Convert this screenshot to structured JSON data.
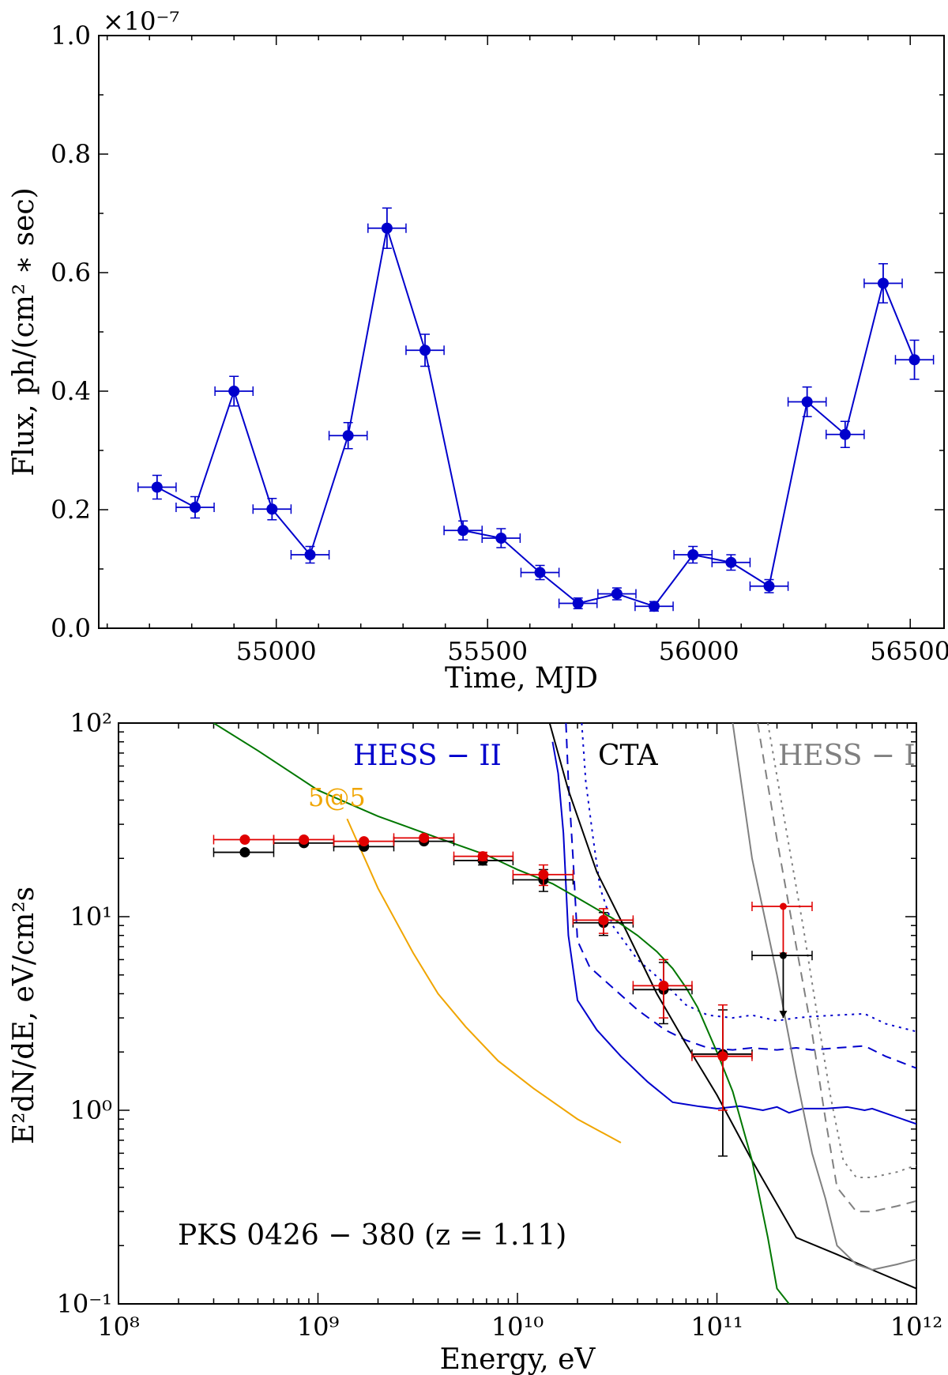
{
  "chart_data": [
    {
      "type": "scatter",
      "title": "",
      "xlabel": "Time, MJD",
      "ylabel": "Flux, ph/(cm² ∗ sec)",
      "y_multiplier": "×10⁻⁷",
      "xlim": [
        54580,
        56580
      ],
      "ylim": [
        0.0,
        1.0
      ],
      "x_ticks": [
        55000,
        55500,
        56000,
        56500
      ],
      "x_tick_labels": [
        "55000",
        "55500",
        "56000",
        "56500"
      ],
      "y_ticks": [
        0.0,
        0.2,
        0.4,
        0.6,
        0.8,
        1.0
      ],
      "y_tick_labels": [
        "0.0",
        "0.2",
        "0.4",
        "0.6",
        "0.8",
        "1.0"
      ],
      "grid": false,
      "color": "#0000cc",
      "x_halfwidth": 45,
      "series": [
        {
          "x": [
            54718,
            54808,
            54900,
            54990,
            55080,
            55170,
            55262,
            55352,
            55442,
            55532,
            55624,
            55714,
            55806,
            55894,
            55986,
            56076,
            56166,
            56256,
            56346,
            56436,
            56510
          ],
          "y": [
            0.238,
            0.204,
            0.4,
            0.201,
            0.124,
            0.325,
            0.675,
            0.469,
            0.165,
            0.152,
            0.094,
            0.042,
            0.058,
            0.037,
            0.124,
            0.111,
            0.071,
            0.382,
            0.327,
            0.582,
            0.453
          ],
          "yerr": [
            0.02,
            0.018,
            0.025,
            0.018,
            0.014,
            0.022,
            0.034,
            0.027,
            0.016,
            0.016,
            0.012,
            0.009,
            0.01,
            0.008,
            0.014,
            0.013,
            0.011,
            0.025,
            0.022,
            0.033,
            0.033
          ]
        }
      ]
    },
    {
      "type": "line",
      "title": "",
      "xlabel": "Energy, eV",
      "ylabel": "E²dN/dE, eV/cm²s",
      "x_scale": "log",
      "y_scale": "log",
      "xlim": [
        100000000.0,
        1000000000000.0
      ],
      "ylim": [
        0.1,
        100
      ],
      "x_tick_labels": [
        "10⁸",
        "10⁹",
        "10¹⁰",
        "10¹¹",
        "10¹²"
      ],
      "y_tick_labels": [
        "10⁻¹",
        "10⁰",
        "10¹",
        "10²"
      ],
      "grid": false,
      "annotation": "PKS 0426 − 380 (z = 1.11)",
      "curve_labels": [
        {
          "text": "HESS − II",
          "color": "#0000cc"
        },
        {
          "text": "CTA",
          "color": "#000000"
        },
        {
          "text": "HESS − I",
          "color": "#808080"
        },
        {
          "text": "5@5",
          "color": "#f0a500"
        }
      ],
      "series": [
        {
          "name": "HESS − II",
          "style": "solid",
          "color": "#0000cc",
          "x": [
            15000000000.0,
            16000000000.0,
            17000000000.0,
            18000000000.0,
            20000000000.0,
            25000000000.0,
            33000000000.0,
            45000000000.0,
            60000000000.0,
            80000000000.0,
            100000000000.0,
            130000000000.0,
            170000000000.0,
            200000000000.0,
            230000000000.0,
            270000000000.0,
            350000000000.0,
            450000000000.0,
            550000000000.0,
            600000000000.0,
            1000000000000.0
          ],
          "y": [
            80,
            55,
            27,
            8,
            3.7,
            2.6,
            1.9,
            1.4,
            1.1,
            1.05,
            1.02,
            1.05,
            1.0,
            1.04,
            0.97,
            1.02,
            1.02,
            1.04,
            1.0,
            1.02,
            0.85
          ]
        },
        {
          "name": "HESS − II",
          "style": "dashed",
          "color": "#0000cc",
          "x": [
            17500000000.0,
            18000000000.0,
            19000000000.0,
            20000000000.0,
            23000000000.0,
            30000000000.0,
            40000000000.0,
            55000000000.0,
            70000000000.0,
            90000000000.0,
            120000000000.0,
            150000000000.0,
            200000000000.0,
            250000000000.0,
            300000000000.0,
            400000000000.0,
            550000000000.0,
            700000000000.0,
            1000000000000.0
          ],
          "y": [
            100,
            50,
            20,
            7.5,
            5.5,
            4.3,
            3.3,
            2.6,
            2.3,
            2.1,
            2.05,
            2.1,
            2.05,
            2.1,
            2.05,
            2.1,
            2.15,
            1.9,
            1.65
          ]
        },
        {
          "name": "HESS − II",
          "style": "dotted",
          "color": "#0000cc",
          "x": [
            21000000000.0,
            22000000000.0,
            24000000000.0,
            26000000000.0,
            30000000000.0,
            40000000000.0,
            55000000000.0,
            70000000000.0,
            90000000000.0,
            120000000000.0,
            150000000000.0,
            200000000000.0,
            250000000000.0,
            300000000000.0,
            400000000000.0,
            550000000000.0,
            700000000000.0,
            1000000000000.0
          ],
          "y": [
            100,
            50,
            25,
            14,
            9,
            6,
            4.5,
            3.5,
            3.1,
            3.0,
            3.1,
            2.9,
            3.0,
            3.05,
            3.1,
            3.15,
            2.8,
            2.55
          ]
        },
        {
          "name": "CTA",
          "style": "solid",
          "color": "#000000",
          "x": [
            14500000000.0,
            18000000000.0,
            25000000000.0,
            35000000000.0,
            50000000000.0,
            70000000000.0,
            100000000000.0,
            150000000000.0,
            250000000000.0,
            400000000000.0,
            600000000000.0,
            1000000000000.0
          ],
          "y": [
            100,
            45,
            17,
            8.5,
            4.0,
            2.2,
            1.2,
            0.55,
            0.22,
            0.18,
            0.15,
            0.12
          ]
        },
        {
          "name": "HESS − I",
          "style": "solid",
          "color": "#808080",
          "x": [
            120000000000.0,
            150000000000.0,
            200000000000.0,
            250000000000.0,
            300000000000.0,
            350000000000.0,
            400000000000.0,
            500000000000.0,
            600000000000.0,
            800000000000.0,
            1000000000000.0
          ],
          "y": [
            100,
            20,
            5,
            1.5,
            0.6,
            0.35,
            0.2,
            0.16,
            0.15,
            0.16,
            0.17
          ]
        },
        {
          "name": "HESS − I",
          "style": "dashed",
          "color": "#808080",
          "x": [
            160000000000.0,
            200000000000.0,
            250000000000.0,
            300000000000.0,
            350000000000.0,
            400000000000.0,
            500000000000.0,
            600000000000.0,
            800000000000.0,
            1000000000000.0
          ],
          "y": [
            100,
            25,
            7,
            2.5,
            0.9,
            0.4,
            0.3,
            0.3,
            0.32,
            0.34
          ]
        },
        {
          "name": "HESS − I",
          "style": "dotted",
          "color": "#808080",
          "x": [
            180000000000.0,
            220000000000.0,
            270000000000.0,
            320000000000.0,
            370000000000.0,
            430000000000.0,
            500000000000.0,
            600000000000.0,
            800000000000.0,
            1000000000000.0
          ],
          "y": [
            100,
            30,
            9,
            3.0,
            1.2,
            0.55,
            0.45,
            0.45,
            0.48,
            0.52
          ]
        },
        {
          "name": "5@5",
          "style": "solid",
          "color": "#f0a500",
          "x": [
            1400000000.0,
            2000000000.0,
            3000000000.0,
            4000000000.0,
            5500000000.0,
            8000000000.0,
            12000000000.0,
            20000000000.0,
            33000000000.0
          ],
          "y": [
            32,
            14,
            6.5,
            4.0,
            2.7,
            1.8,
            1.3,
            0.9,
            0.68
          ]
        },
        {
          "name": "",
          "style": "solid",
          "color": "#007700",
          "x": [
            300000000.0,
            500000000.0,
            1000000000.0,
            2000000000.0,
            4000000000.0,
            7000000000.0,
            10000000000.0,
            15000000000.0,
            20000000000.0,
            30000000000.0,
            40000000000.0,
            50000000000.0,
            60000000000.0,
            70000000000.0,
            80000000000.0,
            100000000000.0,
            120000000000.0,
            150000000000.0,
            180000000000.0,
            200000000000.0,
            230000000000.0
          ],
          "y": [
            100,
            72,
            45,
            33,
            25.5,
            20.8,
            17.5,
            14.8,
            12.5,
            9.8,
            8.0,
            6.6,
            5.4,
            4.3,
            3.4,
            2.0,
            1.25,
            0.55,
            0.22,
            0.12,
            0.1
          ]
        }
      ],
      "points": [
        {
          "name": "",
          "color": "#000000",
          "x": [
            430000000.0,
            850000000.0,
            1700000000.0,
            3400000000.0,
            6700000000.0,
            13500000000.0,
            27000000000.0,
            54000000000.0,
            107000000000.0
          ],
          "y": [
            21.5,
            24.0,
            23.0,
            24.5,
            19.5,
            15.5,
            9.3,
            4.2,
            1.95
          ],
          "x_lo": [
            300000000.0,
            600000000.0,
            1200000000.0,
            2400000000.0,
            4800000000.0,
            9500000000.0,
            19000000000.0,
            38000000000.0,
            75000000000.0
          ],
          "x_hi": [
            600000000.0,
            1200000000.0,
            2400000000.0,
            4800000000.0,
            9500000000.0,
            19000000000.0,
            38000000000.0,
            75000000000.0,
            150000000000.0
          ],
          "y_lo": [
            21.0,
            23.5,
            22.5,
            24.0,
            18.5,
            13.5,
            8.0,
            2.8,
            0.58
          ],
          "y_hi": [
            22.0,
            24.5,
            23.5,
            25.0,
            20.5,
            17.5,
            10.5,
            5.8,
            3.3
          ]
        },
        {
          "name": "",
          "color": "#e00000",
          "x": [
            430000000.0,
            850000000.0,
            1700000000.0,
            3400000000.0,
            6700000000.0,
            13500000000.0,
            27000000000.0,
            54000000000.0,
            107000000000.0
          ],
          "y": [
            25.0,
            25.0,
            24.5,
            25.5,
            20.5,
            16.5,
            9.6,
            4.4,
            1.9
          ],
          "x_lo": [
            300000000.0,
            600000000.0,
            1200000000.0,
            2400000000.0,
            4800000000.0,
            9500000000.0,
            19000000000.0,
            38000000000.0,
            75000000000.0
          ],
          "x_hi": [
            600000000.0,
            1200000000.0,
            2400000000.0,
            4800000000.0,
            9500000000.0,
            19000000000.0,
            38000000000.0,
            75000000000.0,
            150000000000.0
          ],
          "y_lo": [
            24.5,
            24.5,
            24.0,
            25.0,
            19.5,
            14.5,
            8.2,
            3.0,
            1.0
          ],
          "y_hi": [
            25.5,
            25.5,
            25.0,
            26.0,
            21.5,
            18.5,
            11.0,
            6.0,
            3.5
          ]
        }
      ],
      "upper_limits": [
        {
          "color": "#e00000",
          "x": 215000000000.0,
          "y": 11.3,
          "x_lo": 150000000000.0,
          "x_hi": 300000000000.0,
          "y_arrow_to": 6.0
        },
        {
          "color": "#000000",
          "x": 215000000000.0,
          "y": 6.3,
          "x_lo": 150000000000.0,
          "x_hi": 300000000000.0,
          "y_arrow_to": 3.0
        }
      ]
    }
  ]
}
